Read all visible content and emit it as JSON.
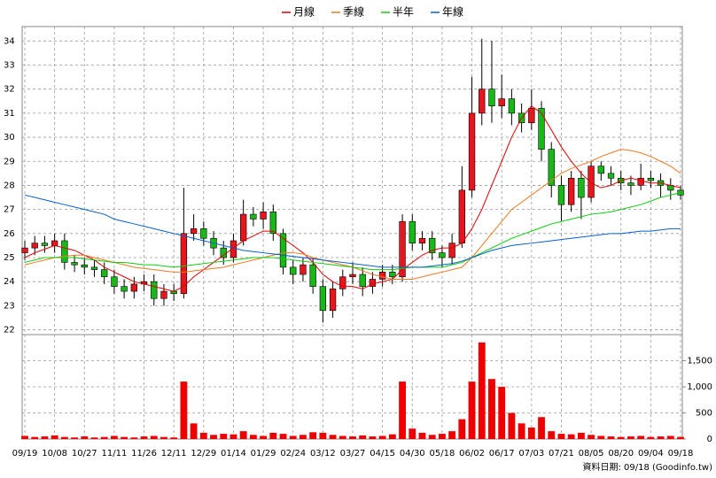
{
  "chart_data": {
    "type": "candlestick",
    "categories": [
      "09/19",
      null,
      null,
      "10/08",
      null,
      null,
      "10/27",
      null,
      null,
      "11/11",
      null,
      null,
      "11/26",
      null,
      null,
      "12/11",
      null,
      null,
      "12/29",
      null,
      null,
      "01/14",
      null,
      null,
      "01/29",
      null,
      null,
      "02/24",
      null,
      null,
      "03/12",
      null,
      null,
      "03/27",
      null,
      null,
      "04/15",
      null,
      null,
      "04/30",
      null,
      null,
      "05/18",
      null,
      null,
      "06/02",
      null,
      null,
      "06/17",
      null,
      null,
      "07/03",
      null,
      null,
      "07/21",
      null,
      null,
      "08/05",
      null,
      null,
      "08/20",
      null,
      null,
      "09/04",
      null,
      null,
      "09/18"
    ],
    "open": [
      25.2,
      25.4,
      25.6,
      25.5,
      25.7,
      24.8,
      24.7,
      24.6,
      24.5,
      24.2,
      23.8,
      23.6,
      23.9,
      24.0,
      23.3,
      23.6,
      23.5,
      26.0,
      26.2,
      25.8,
      25.4,
      25.0,
      25.7,
      26.8,
      26.6,
      26.9,
      26.0,
      24.6,
      24.3,
      24.7,
      23.8,
      22.8,
      23.7,
      24.2,
      24.3,
      23.8,
      24.1,
      24.4,
      24.2,
      26.5,
      25.6,
      25.8,
      25.2,
      25.0,
      25.6,
      27.8,
      31.0,
      32.0,
      31.3,
      31.6,
      31.0,
      30.6,
      31.2,
      29.5,
      28.0,
      27.2,
      28.3,
      27.5,
      28.8,
      28.5,
      28.3,
      28.1,
      28.0,
      28.3,
      28.2,
      28.0,
      27.8
    ],
    "high": [
      25.7,
      25.9,
      25.9,
      26.0,
      26.0,
      25.1,
      25.0,
      24.9,
      24.8,
      24.5,
      24.1,
      24.2,
      24.3,
      24.3,
      23.9,
      23.9,
      27.9,
      26.8,
      26.5,
      26.1,
      25.7,
      26.0,
      27.4,
      27.1,
      27.3,
      27.2,
      26.2,
      24.9,
      25.0,
      25.0,
      24.1,
      24.0,
      24.5,
      24.8,
      24.6,
      24.4,
      24.7,
      24.7,
      26.8,
      26.8,
      26.1,
      26.1,
      25.5,
      26.0,
      28.8,
      32.5,
      34.1,
      34.0,
      32.6,
      32.0,
      31.4,
      32.0,
      31.5,
      29.8,
      28.4,
      28.6,
      28.6,
      29.0,
      29.0,
      28.8,
      28.6,
      28.4,
      28.9,
      28.6,
      28.5,
      28.3,
      28.0
    ],
    "low": [
      24.9,
      25.1,
      25.2,
      25.2,
      24.5,
      24.4,
      24.3,
      24.2,
      23.9,
      23.5,
      23.3,
      23.3,
      23.6,
      23.0,
      23.0,
      23.2,
      23.3,
      25.7,
      25.5,
      25.1,
      24.7,
      24.8,
      25.5,
      26.3,
      26.2,
      25.7,
      24.3,
      23.9,
      24.0,
      23.5,
      22.3,
      22.5,
      23.4,
      23.9,
      23.4,
      23.5,
      23.8,
      23.9,
      24.0,
      25.3,
      25.3,
      24.9,
      24.6,
      24.7,
      25.4,
      27.5,
      30.5,
      30.6,
      30.8,
      30.5,
      30.2,
      30.3,
      29.0,
      27.5,
      26.5,
      26.9,
      26.6,
      27.3,
      28.2,
      28.0,
      27.8,
      27.6,
      27.8,
      27.9,
      27.5,
      27.4,
      27.4
    ],
    "close": [
      25.4,
      25.6,
      25.5,
      25.7,
      24.8,
      24.7,
      24.6,
      24.5,
      24.2,
      23.8,
      23.6,
      23.9,
      24.0,
      23.3,
      23.6,
      23.5,
      26.0,
      26.2,
      25.8,
      25.4,
      25.0,
      25.7,
      26.8,
      26.6,
      26.9,
      26.0,
      24.6,
      24.3,
      24.7,
      23.8,
      22.8,
      23.7,
      24.2,
      24.3,
      23.8,
      24.1,
      24.4,
      24.2,
      26.5,
      25.6,
      25.8,
      25.2,
      25.0,
      25.6,
      27.8,
      31.0,
      32.0,
      31.3,
      31.6,
      31.0,
      30.6,
      31.2,
      29.5,
      28.0,
      27.2,
      28.3,
      27.5,
      28.8,
      28.5,
      28.3,
      28.1,
      28.0,
      28.3,
      28.2,
      28.0,
      27.8,
      27.6
    ],
    "up_color": "#e8141e",
    "down_color": "#18b818",
    "series": [
      {
        "name": "月線",
        "color": "#e00000",
        "values": [
          25.0,
          25.2,
          25.35,
          25.5,
          25.4,
          25.3,
          25.1,
          24.9,
          24.6,
          24.4,
          24.2,
          24.0,
          23.9,
          23.8,
          23.7,
          23.6,
          23.8,
          24.2,
          24.5,
          24.8,
          25.1,
          25.4,
          25.7,
          25.9,
          26.1,
          26.1,
          25.8,
          25.5,
          25.2,
          24.8,
          24.3,
          24.0,
          23.8,
          23.8,
          23.7,
          23.9,
          24.0,
          24.1,
          24.5,
          24.8,
          25.1,
          25.3,
          25.4,
          25.4,
          25.6,
          26.2,
          27.0,
          28.0,
          29.0,
          30.0,
          30.8,
          31.3,
          31.0,
          30.3,
          29.6,
          29.0,
          28.5,
          28.1,
          27.9,
          28.0,
          28.2,
          28.3,
          28.2,
          28.1,
          28.1,
          28.0,
          27.9
        ]
      },
      {
        "name": "季線",
        "color": "#f07820",
        "values": [
          24.7,
          24.8,
          24.9,
          25.0,
          25.05,
          25.1,
          25.1,
          25.0,
          24.9,
          24.8,
          24.7,
          24.6,
          24.55,
          24.5,
          24.45,
          24.4,
          24.4,
          24.45,
          24.5,
          24.55,
          24.6,
          24.7,
          24.8,
          24.9,
          25.0,
          25.1,
          25.2,
          25.2,
          25.15,
          25.0,
          24.9,
          24.8,
          24.7,
          24.6,
          24.45,
          24.3,
          24.2,
          24.1,
          24.1,
          24.1,
          24.2,
          24.3,
          24.4,
          24.5,
          24.6,
          25.0,
          25.5,
          26.0,
          26.5,
          27.0,
          27.3,
          27.6,
          27.9,
          28.2,
          28.5,
          28.7,
          28.85,
          29.0,
          29.2,
          29.35,
          29.5,
          29.45,
          29.35,
          29.2,
          29.0,
          28.8,
          28.5
        ]
      },
      {
        "name": "半年",
        "color": "#10cc10",
        "values": [
          24.8,
          24.9,
          25.0,
          25.0,
          25.0,
          25.0,
          24.95,
          24.9,
          24.85,
          24.8,
          24.8,
          24.75,
          24.7,
          24.7,
          24.65,
          24.6,
          24.65,
          24.7,
          24.75,
          24.8,
          24.85,
          24.9,
          24.95,
          25.0,
          25.0,
          25.0,
          24.95,
          24.9,
          24.85,
          24.8,
          24.75,
          24.7,
          24.65,
          24.6,
          24.55,
          24.5,
          24.5,
          24.5,
          24.55,
          24.6,
          24.6,
          24.6,
          24.6,
          24.7,
          24.8,
          25.0,
          25.2,
          25.4,
          25.6,
          25.8,
          25.95,
          26.1,
          26.25,
          26.4,
          26.5,
          26.6,
          26.7,
          26.8,
          26.85,
          26.9,
          27.0,
          27.1,
          27.2,
          27.35,
          27.5,
          27.6,
          27.7
        ]
      },
      {
        "name": "年線",
        "color": "#0860c8",
        "values": [
          27.6,
          27.5,
          27.4,
          27.3,
          27.2,
          27.1,
          27.0,
          26.9,
          26.8,
          26.6,
          26.5,
          26.4,
          26.3,
          26.2,
          26.1,
          26.0,
          25.9,
          25.8,
          25.7,
          25.6,
          25.5,
          25.4,
          25.3,
          25.25,
          25.2,
          25.15,
          25.1,
          25.05,
          25.0,
          24.95,
          24.9,
          24.85,
          24.8,
          24.75,
          24.7,
          24.65,
          24.6,
          24.6,
          24.6,
          24.6,
          24.6,
          24.65,
          24.7,
          24.75,
          24.85,
          25.0,
          25.15,
          25.3,
          25.4,
          25.5,
          25.55,
          25.6,
          25.65,
          25.7,
          25.75,
          25.8,
          25.85,
          25.9,
          25.95,
          26.0,
          26.0,
          26.05,
          26.1,
          26.1,
          26.15,
          26.2,
          26.2
        ]
      }
    ],
    "ylim": [
      21.8,
      34.6
    ],
    "yticks": [
      22,
      23,
      24,
      25,
      26,
      27,
      28,
      29,
      30,
      31,
      32,
      33,
      34
    ],
    "grid": true,
    "volume": {
      "color": "#ee0000",
      "values": [
        60,
        40,
        50,
        70,
        40,
        30,
        50,
        30,
        40,
        60,
        40,
        30,
        50,
        60,
        40,
        30,
        1100,
        300,
        120,
        80,
        100,
        90,
        150,
        80,
        60,
        120,
        100,
        60,
        80,
        130,
        120,
        80,
        60,
        50,
        70,
        50,
        60,
        90,
        1100,
        200,
        120,
        80,
        100,
        150,
        380,
        1100,
        1850,
        1150,
        1000,
        500,
        300,
        220,
        420,
        150,
        100,
        90,
        120,
        80,
        60,
        50,
        40,
        50,
        60,
        40,
        50,
        60,
        40
      ],
      "ylim": [
        0,
        2000
      ],
      "yticks": [
        0,
        500,
        {
          "value": 1000,
          "label": "1,000"
        },
        {
          "value": 1500,
          "label": "1,500"
        }
      ]
    },
    "annotation": "資料日期: 09/18  (Goodinfo.tw)"
  }
}
